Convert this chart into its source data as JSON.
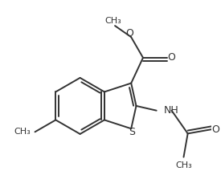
{
  "background_color": "#ffffff",
  "line_color": "#333333",
  "line_width": 1.4,
  "dbo": 0.012,
  "figsize": [
    2.75,
    2.13
  ],
  "dpi": 100,
  "atoms": {
    "S": "S",
    "O": "O",
    "NH": "NH",
    "CH3": "CH₃"
  }
}
